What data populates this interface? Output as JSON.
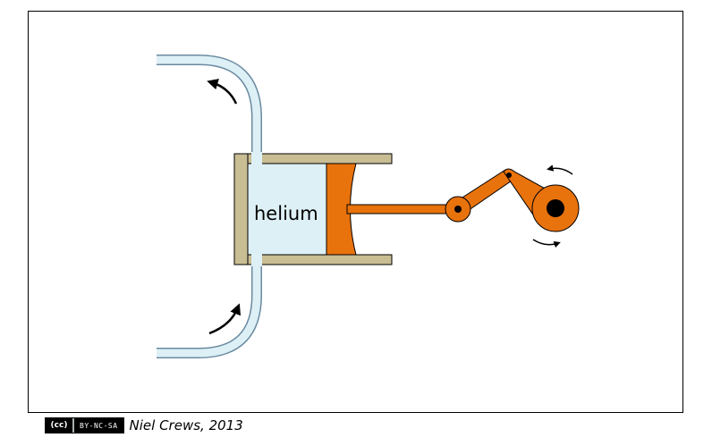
{
  "diagram": {
    "label": "helium"
  },
  "credit": {
    "license_badge": "BY-NC-SA",
    "license_circle": "(cc)",
    "author": "Niel Crews, 2013"
  },
  "colors": {
    "frame": "#000000",
    "cylinder": "#c9bd94",
    "helium_fill": "#ddf0f6",
    "pipe": "#ddf0f6",
    "piston": "#e8720c",
    "pivot": "#000000",
    "arrow": "#000000"
  }
}
